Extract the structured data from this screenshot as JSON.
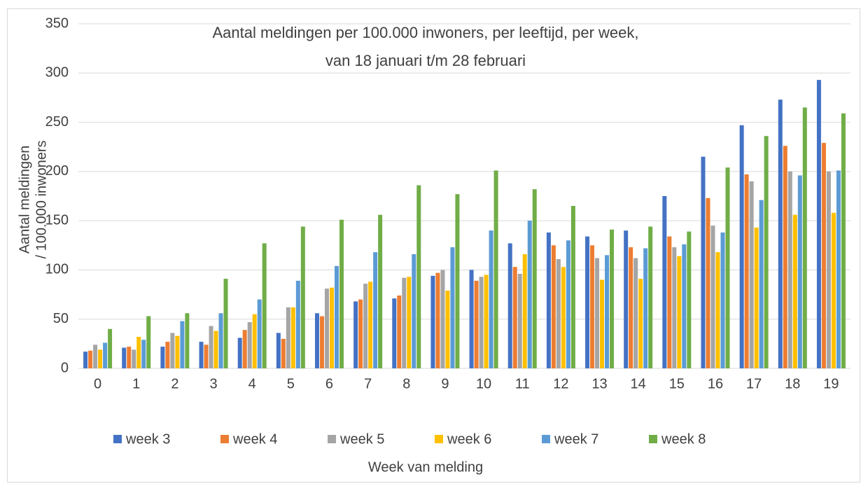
{
  "chart_data": {
    "type": "bar",
    "title": "Aantal meldingen per 100.000 inwoners, per leeftijd, per week,",
    "subtitle": "van 18 januari t/m 28 februari",
    "ylabel": [
      "Aantal meldingen",
      "/ 100.000 inwoners"
    ],
    "xlabel": "Week van melding",
    "categories": [
      "0",
      "1",
      "2",
      "3",
      "4",
      "5",
      "6",
      "7",
      "8",
      "9",
      "10",
      "11",
      "12",
      "13",
      "14",
      "15",
      "16",
      "17",
      "18",
      "19"
    ],
    "series": [
      {
        "name": "week 3",
        "color": "#4472c4",
        "values": [
          17,
          21,
          22,
          27,
          31,
          36,
          56,
          68,
          71,
          94,
          100,
          127,
          138,
          134,
          140,
          175,
          215,
          247,
          273,
          293
        ]
      },
      {
        "name": "week 4",
        "color": "#ed7d31",
        "values": [
          18,
          22,
          27,
          24,
          39,
          30,
          53,
          70,
          74,
          97,
          89,
          103,
          125,
          125,
          123,
          134,
          173,
          197,
          226,
          229
        ]
      },
      {
        "name": "week 5",
        "color": "#a5a5a5",
        "values": [
          24,
          19,
          36,
          43,
          47,
          62,
          81,
          86,
          92,
          100,
          93,
          96,
          111,
          112,
          112,
          123,
          145,
          190,
          200,
          200
        ]
      },
      {
        "name": "week 6",
        "color": "#ffc000",
        "values": [
          19,
          32,
          33,
          38,
          55,
          62,
          82,
          88,
          93,
          79,
          95,
          116,
          103,
          90,
          91,
          114,
          118,
          143,
          156,
          158
        ]
      },
      {
        "name": "week 7",
        "color": "#5b9bd5",
        "values": [
          26,
          29,
          48,
          56,
          70,
          89,
          104,
          118,
          116,
          123,
          140,
          150,
          130,
          115,
          122,
          126,
          138,
          171,
          196,
          201
        ]
      },
      {
        "name": "week 8",
        "color": "#70ad47",
        "values": [
          40,
          53,
          56,
          91,
          127,
          144,
          151,
          156,
          186,
          177,
          201,
          182,
          165,
          141,
          144,
          139,
          204,
          236,
          265,
          259
        ]
      }
    ],
    "ylim": [
      0,
      350
    ],
    "yticks": [
      0,
      50,
      100,
      150,
      200,
      250,
      300,
      350
    ],
    "grid": true,
    "legend": "bottom"
  }
}
